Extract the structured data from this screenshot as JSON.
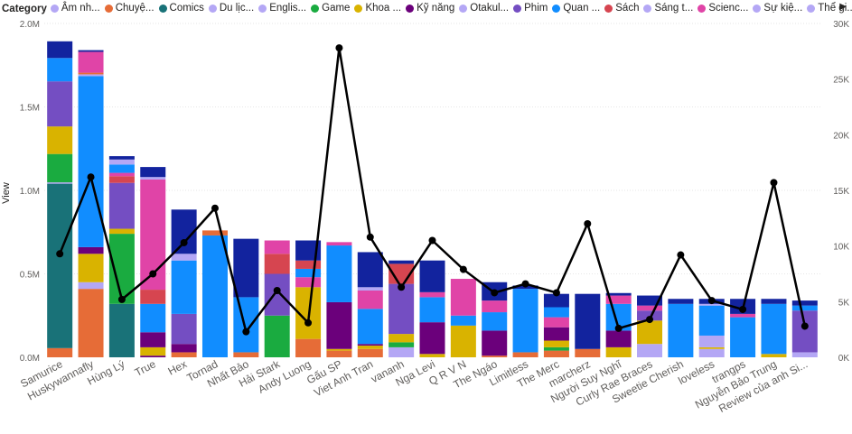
{
  "legend": {
    "title": "Category",
    "next_icon": "chevron-right-icon",
    "items": [
      {
        "label": "Âm nh...",
        "color": "#B4A7F5"
      },
      {
        "label": "Chuyệ...",
        "color": "#E66C37"
      },
      {
        "label": "Comics",
        "color": "#197278"
      },
      {
        "label": "Du lịc...",
        "color": "#B4A7F5"
      },
      {
        "label": "Englis...",
        "color": "#B4A7F5"
      },
      {
        "label": "Game",
        "color": "#1AAB40"
      },
      {
        "label": "Khoa ...",
        "color": "#D9B300"
      },
      {
        "label": "Kỹ năng",
        "color": "#6B007B"
      },
      {
        "label": "Otakul...",
        "color": "#B4A7F5"
      },
      {
        "label": "Phim",
        "color": "#744EC2"
      },
      {
        "label": "Quan ...",
        "color": "#118DFF"
      },
      {
        "label": "Sách",
        "color": "#D64550"
      },
      {
        "label": "Sáng t...",
        "color": "#B4A7F5"
      },
      {
        "label": "Scienc...",
        "color": "#E044A7"
      },
      {
        "label": "Sự kiệ...",
        "color": "#B4A7F5"
      },
      {
        "label": "Thể gi...",
        "color": "#B4A7F5"
      }
    ]
  },
  "chart_data": {
    "type": "bar",
    "stacked": true,
    "ylabel": "View",
    "ylim": [
      0,
      2000000
    ],
    "y_ticks": [
      "0.0M",
      "0.5M",
      "1.0M",
      "1.5M",
      "2.0M"
    ],
    "y2lim": [
      0,
      30000
    ],
    "y2_ticks": [
      "0K",
      "5K",
      "10K",
      "15K",
      "20K",
      "25K",
      "30K"
    ],
    "categories": [
      "Samurice",
      "Huskywannafly",
      "Hùng Lý",
      "True",
      "Hex",
      "Tornad",
      "Nhất Bảo",
      "Hải Stark",
      "Andy Luong",
      "Gấu SP",
      "Viet Anh Tran",
      "vananh",
      "Nga Levi",
      "Q R V N",
      "The Ngáo",
      "Limitless",
      "The Merc",
      "marcherz",
      "Người Suy Nghĩ",
      "Curly Rae Braces",
      "Sweetie Cherish",
      "loveless",
      "trangps",
      "Nguyễn Bảo Trung",
      "Review của anh Si..."
    ],
    "segments": [
      [
        [
          "#E66C37",
          55000
        ],
        [
          "#197278",
          985000
        ],
        [
          "#B4A7F5",
          8000
        ],
        [
          "#1AAB40",
          170000
        ],
        [
          "#D9B300",
          165000
        ],
        [
          "#744EC2",
          270000
        ],
        [
          "#118DFF",
          140000
        ],
        [
          "#12239E",
          100000
        ]
      ],
      [
        [
          "#E66C37",
          410000
        ],
        [
          "#B4A7F5",
          40000
        ],
        [
          "#D9B300",
          170000
        ],
        [
          "#6B007B",
          40000
        ],
        [
          "#118DFF",
          1025000
        ],
        [
          "#B4A7F5",
          10000
        ],
        [
          "#E66C37",
          10000
        ],
        [
          "#E044A7",
          125000
        ],
        [
          "#12239E",
          10000
        ]
      ],
      [
        [
          "#197278",
          320000
        ],
        [
          "#1AAB40",
          420000
        ],
        [
          "#D9B300",
          30000
        ],
        [
          "#744EC2",
          275000
        ],
        [
          "#D64550",
          40000
        ],
        [
          "#E044A7",
          20000
        ],
        [
          "#118DFF",
          50000
        ],
        [
          "#B4A7F5",
          30000
        ],
        [
          "#12239E",
          20000
        ]
      ],
      [
        [
          "#6B007B",
          10000
        ],
        [
          "#D9B300",
          50000
        ],
        [
          "#6B007B",
          90000
        ],
        [
          "#118DFF",
          170000
        ],
        [
          "#D64550",
          85000
        ],
        [
          "#E044A7",
          660000
        ],
        [
          "#B4A7F5",
          15000
        ],
        [
          "#12239E",
          60000
        ]
      ],
      [
        [
          "#E66C37",
          30000
        ],
        [
          "#6B007B",
          50000
        ],
        [
          "#744EC2",
          180000
        ],
        [
          "#118DFF",
          320000
        ],
        [
          "#B4A7F5",
          40000
        ],
        [
          "#12239E",
          265000
        ]
      ],
      [
        [
          "#118DFF",
          730000
        ],
        [
          "#E66C37",
          30000
        ]
      ],
      [
        [
          "#E66C37",
          30000
        ],
        [
          "#118DFF",
          330000
        ],
        [
          "#12239E",
          350000
        ]
      ],
      [
        [
          "#1AAB40",
          250000
        ],
        [
          "#744EC2",
          250000
        ],
        [
          "#D64550",
          120000
        ],
        [
          "#E044A7",
          80000
        ]
      ],
      [
        [
          "#E66C37",
          110000
        ],
        [
          "#D9B300",
          310000
        ],
        [
          "#E044A7",
          60000
        ],
        [
          "#118DFF",
          50000
        ],
        [
          "#D64550",
          50000
        ],
        [
          "#12239E",
          120000
        ]
      ],
      [
        [
          "#E66C37",
          40000
        ],
        [
          "#D9B300",
          10000
        ],
        [
          "#6B007B",
          280000
        ],
        [
          "#118DFF",
          340000
        ],
        [
          "#E044A7",
          20000
        ]
      ],
      [
        [
          "#E66C37",
          50000
        ],
        [
          "#D9B300",
          20000
        ],
        [
          "#6B007B",
          10000
        ],
        [
          "#118DFF",
          210000
        ],
        [
          "#E044A7",
          110000
        ],
        [
          "#B4A7F5",
          20000
        ],
        [
          "#12239E",
          210000
        ]
      ],
      [
        [
          "#B4A7F5",
          60000
        ],
        [
          "#1AAB40",
          30000
        ],
        [
          "#D9B300",
          50000
        ],
        [
          "#744EC2",
          300000
        ],
        [
          "#D64550",
          120000
        ],
        [
          "#12239E",
          20000
        ]
      ],
      [
        [
          "#D9B300",
          20000
        ],
        [
          "#6B007B",
          190000
        ],
        [
          "#118DFF",
          150000
        ],
        [
          "#E044A7",
          30000
        ],
        [
          "#12239E",
          190000
        ]
      ],
      [
        [
          "#D9B300",
          190000
        ],
        [
          "#118DFF",
          60000
        ],
        [
          "#E044A7",
          220000
        ]
      ],
      [
        [
          "#E66C37",
          10000
        ],
        [
          "#6B007B",
          150000
        ],
        [
          "#118DFF",
          110000
        ],
        [
          "#E044A7",
          70000
        ],
        [
          "#12239E",
          110000
        ]
      ],
      [
        [
          "#E66C37",
          30000
        ],
        [
          "#118DFF",
          380000
        ],
        [
          "#12239E",
          20000
        ]
      ],
      [
        [
          "#E66C37",
          40000
        ],
        [
          "#1AAB40",
          20000
        ],
        [
          "#D9B300",
          40000
        ],
        [
          "#6B007B",
          80000
        ],
        [
          "#E044A7",
          60000
        ],
        [
          "#118DFF",
          60000
        ],
        [
          "#12239E",
          80000
        ]
      ],
      [
        [
          "#E66C37",
          50000
        ],
        [
          "#12239E",
          330000
        ]
      ],
      [
        [
          "#D9B300",
          60000
        ],
        [
          "#6B007B",
          100000
        ],
        [
          "#118DFF",
          160000
        ],
        [
          "#E044A7",
          50000
        ],
        [
          "#12239E",
          15000
        ]
      ],
      [
        [
          "#B4A7F5",
          80000
        ],
        [
          "#D9B300",
          140000
        ],
        [
          "#744EC2",
          60000
        ],
        [
          "#E044A7",
          30000
        ],
        [
          "#12239E",
          60000
        ]
      ],
      [
        [
          "#118DFF",
          320000
        ],
        [
          "#12239E",
          30000
        ]
      ],
      [
        [
          "#B4A7F5",
          50000
        ],
        [
          "#D9B300",
          10000
        ],
        [
          "#B4A7F5",
          70000
        ],
        [
          "#118DFF",
          180000
        ],
        [
          "#B4A7F5",
          10000
        ],
        [
          "#12239E",
          30000
        ]
      ],
      [
        [
          "#118DFF",
          240000
        ],
        [
          "#E044A7",
          20000
        ],
        [
          "#12239E",
          90000
        ]
      ],
      [
        [
          "#D9B300",
          20000
        ],
        [
          "#118DFF",
          300000
        ],
        [
          "#12239E",
          30000
        ]
      ],
      [
        [
          "#B4A7F5",
          30000
        ],
        [
          "#744EC2",
          250000
        ],
        [
          "#118DFF",
          30000
        ],
        [
          "#12239E",
          30000
        ]
      ]
    ],
    "line": {
      "color": "#000000",
      "values": [
        9300,
        16200,
        5200,
        7500,
        10300,
        13400,
        2300,
        6000,
        3100,
        27800,
        10800,
        6300,
        10500,
        7900,
        5800,
        6600,
        5800,
        12000,
        2600,
        3400,
        9200,
        5100,
        4300,
        15700,
        2800
      ]
    }
  }
}
